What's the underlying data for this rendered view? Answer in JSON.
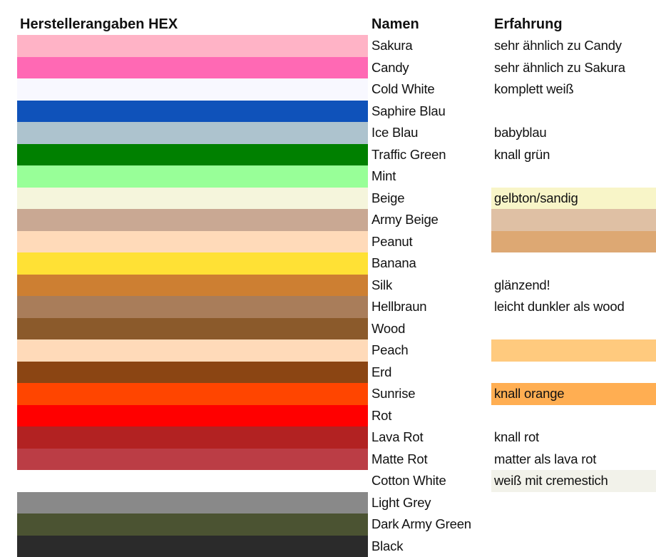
{
  "headers": {
    "hex": "Herstellerangaben HEX",
    "names": "Namen",
    "experience": "Erfahrung"
  },
  "rows": [
    {
      "name": "Sakura",
      "swatch": "#FFB3C6",
      "note": "sehr ähnlich zu Candy",
      "note_bg": ""
    },
    {
      "name": "Candy",
      "swatch": "#FF69B4",
      "note": "sehr ähnlich zu Sakura",
      "note_bg": ""
    },
    {
      "name": "Cold White",
      "swatch": "#F8F8FF",
      "note": "komplett weiß",
      "note_bg": ""
    },
    {
      "name": "Saphire Blau",
      "swatch": "#0F52BA",
      "note": "",
      "note_bg": ""
    },
    {
      "name": "Ice Blau",
      "swatch": "#ADC3CE",
      "note": "babyblau",
      "note_bg": ""
    },
    {
      "name": "Traffic Green",
      "swatch": "#008000",
      "note": "knall grün",
      "note_bg": ""
    },
    {
      "name": "Mint",
      "swatch": "#98FF98",
      "note": "",
      "note_bg": ""
    },
    {
      "name": "Beige",
      "swatch": "#F5F5DC",
      "note": "gelbton/sandig",
      "note_bg": "#F8F5C8"
    },
    {
      "name": "Army Beige",
      "swatch": "#C9A893",
      "note": "",
      "note_bg": "#DFC0A4"
    },
    {
      "name": "Peanut",
      "swatch": "#FFDAB9",
      "note": "",
      "note_bg": "#DDA873"
    },
    {
      "name": "Banana",
      "swatch": "#FFE135",
      "note": "",
      "note_bg": ""
    },
    {
      "name": "Silk",
      "swatch": "#CD7F32",
      "note": "glänzend!",
      "note_bg": ""
    },
    {
      "name": "Hellbraun",
      "swatch": "#A97D5A",
      "note": "leicht dunkler als wood",
      "note_bg": ""
    },
    {
      "name": "Wood",
      "swatch": "#8B5A2B",
      "note": "",
      "note_bg": ""
    },
    {
      "name": "Peach",
      "swatch": "#FFDAB9",
      "note": "",
      "note_bg": "#FFCA7E"
    },
    {
      "name": "Erd",
      "swatch": "#8B4513",
      "note": "",
      "note_bg": ""
    },
    {
      "name": "Sunrise",
      "swatch": "#FF4500",
      "note": "knall orange",
      "note_bg": "#FFAE52"
    },
    {
      "name": "Rot",
      "swatch": "#FF0000",
      "note": "",
      "note_bg": ""
    },
    {
      "name": "Lava Rot",
      "swatch": "#B22222",
      "note": "knall rot",
      "note_bg": ""
    },
    {
      "name": "Matte Rot",
      "swatch": "#BB3D45",
      "note": "matter als lava rot",
      "note_bg": ""
    },
    {
      "name": "Cotton White",
      "swatch": "#FFFFFF",
      "note": "weiß mit cremestich",
      "note_bg": "#F2F2EA"
    },
    {
      "name": "Light Grey",
      "swatch": "#898989",
      "note": "",
      "note_bg": ""
    },
    {
      "name": "Dark Army Green",
      "swatch": "#4B5332",
      "note": "",
      "note_bg": ""
    },
    {
      "name": "Black",
      "swatch": "#2B2B2B",
      "note": "",
      "note_bg": ""
    }
  ]
}
